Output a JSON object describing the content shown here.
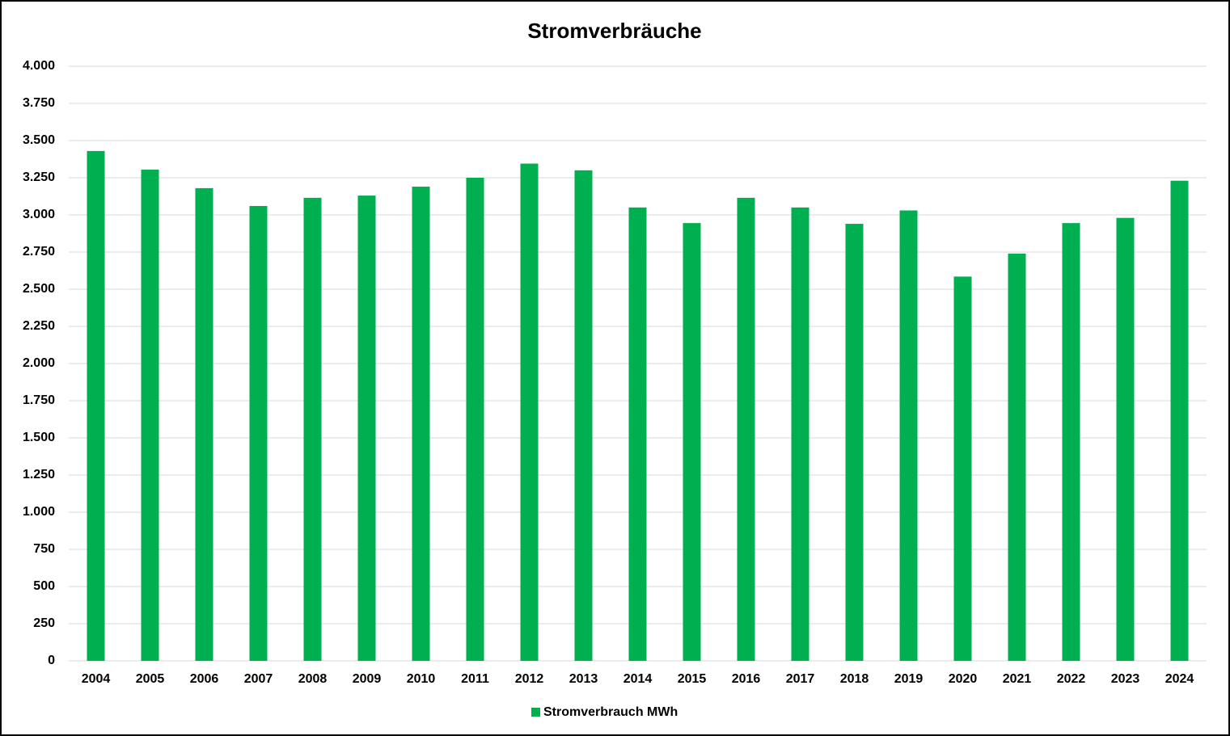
{
  "chart_data": {
    "type": "bar",
    "title": "Stromverbräuche",
    "categories": [
      "2004",
      "2005",
      "2006",
      "2007",
      "2008",
      "2009",
      "2010",
      "2011",
      "2012",
      "2013",
      "2014",
      "2015",
      "2016",
      "2017",
      "2018",
      "2019",
      "2020",
      "2021",
      "2022",
      "2023",
      "2024"
    ],
    "series": [
      {
        "name": "Stromverbrauch MWh",
        "color": "#00b050",
        "values": [
          3430,
          3305,
          3180,
          3060,
          3115,
          3130,
          3190,
          3250,
          3345,
          3300,
          3050,
          2945,
          3115,
          3050,
          2940,
          3030,
          2585,
          2740,
          2945,
          2980,
          3230
        ]
      }
    ],
    "ylim": [
      0,
      4000
    ],
    "yticks": [
      0,
      250,
      500,
      750,
      {
        "value": 1000,
        "label": "1.000"
      },
      {
        "value": 1250,
        "label": "1.250"
      },
      {
        "value": 1500,
        "label": "1.500"
      },
      {
        "value": 1750,
        "label": "1.750"
      },
      {
        "value": 2000,
        "label": "2.000"
      },
      {
        "value": 2250,
        "label": "2.250"
      },
      {
        "value": 2500,
        "label": "2.500"
      },
      {
        "value": 2750,
        "label": "2.750"
      },
      {
        "value": 3000,
        "label": "3.000"
      },
      {
        "value": 3250,
        "label": "3.250"
      },
      {
        "value": 3500,
        "label": "3.500"
      },
      {
        "value": 3750,
        "label": "3.750"
      },
      {
        "value": 4000,
        "label": "4.000"
      }
    ],
    "grid": true,
    "legend": "bottom"
  }
}
